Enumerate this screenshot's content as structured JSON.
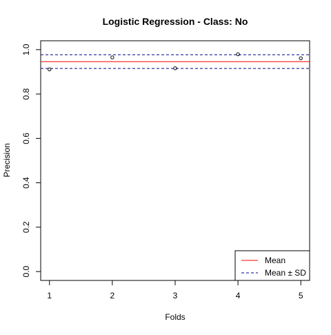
{
  "chart_data": {
    "type": "scatter",
    "title": "Logistic Regression - Class: No",
    "xlabel": "Folds",
    "ylabel": "Precision",
    "x": [
      1,
      2,
      3,
      4,
      5
    ],
    "y": [
      0.911,
      0.965,
      0.916,
      0.979,
      0.961
    ],
    "xlim": [
      0.86,
      5.14
    ],
    "ylim": [
      -0.04,
      1.04
    ],
    "x_ticks": [
      1,
      2,
      3,
      4,
      5
    ],
    "x_tick_labels": [
      "1",
      "2",
      "3",
      "4",
      "5"
    ],
    "y_ticks": [
      0.0,
      0.2,
      0.4,
      0.6,
      0.8,
      1.0
    ],
    "y_tick_labels": [
      "0.0",
      "0.2",
      "0.4",
      "0.6",
      "0.8",
      "1.0"
    ],
    "mean": 0.946,
    "sd_upper": 0.977,
    "sd_lower": 0.915,
    "grid": false,
    "legend": {
      "position": "bottom-right",
      "entries": [
        {
          "label": "Mean",
          "color": "#ff0000",
          "style": "solid"
        },
        {
          "label": "Mean ± SD",
          "color": "#00008b",
          "style": "dashed"
        }
      ]
    },
    "colors": {
      "points": "#000000",
      "mean_line": "#ff0000",
      "sd_lines": "#00008b"
    }
  }
}
